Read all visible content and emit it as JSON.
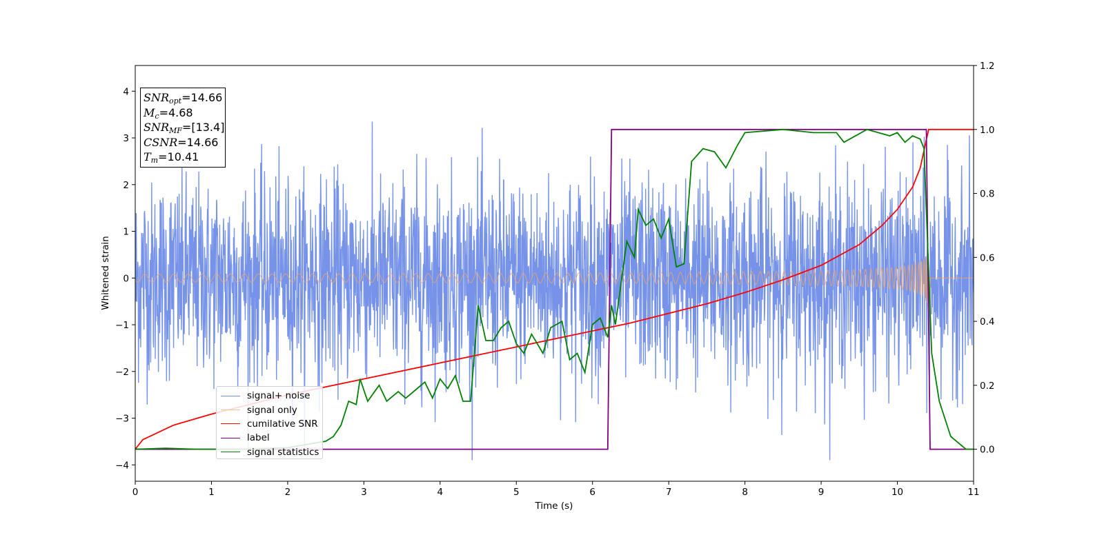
{
  "chart_data": {
    "type": "line",
    "xlabel": "Time (s)",
    "ylabel": "Whitened strain",
    "xlim": [
      0,
      11
    ],
    "ylim_left": [
      -4.35,
      4.55
    ],
    "ylim_right": [
      -0.1,
      1.2
    ],
    "x_ticks": [
      "0",
      "1",
      "2",
      "3",
      "4",
      "5",
      "6",
      "7",
      "8",
      "9",
      "10",
      "11"
    ],
    "y_ticks_left": [
      "−4",
      "−3",
      "−2",
      "−1",
      "0",
      "1",
      "2",
      "3",
      "4"
    ],
    "y_ticks_right": [
      "0.0",
      "0.2",
      "0.4",
      "0.6",
      "0.8",
      "1.0",
      "1.2"
    ],
    "grid": false,
    "legend_position": "lower-left",
    "annotation": {
      "snr_opt_label": "SNR",
      "snr_opt_sub": "opt",
      "snr_opt_value": "=14.66",
      "mc_label": "M",
      "mc_sub": "c",
      "mc_value": "=4.68",
      "snr_mf_label": "SNR",
      "snr_mf_sub": "MF",
      "snr_mf_value": "=[13.4]",
      "csnr_label": "CSNR",
      "csnr_value": "=14.66",
      "tm_label": "T",
      "tm_sub": "m",
      "tm_value": "=10.41"
    },
    "series": [
      {
        "name": "signal+ noise",
        "color": "#4169e1",
        "axis": "left",
        "kind": "noise_band",
        "approx_range": [
          -3.9,
          4.2
        ],
        "t_end": 11
      },
      {
        "name": "signal only",
        "color": "#f4a460",
        "axis": "left",
        "kind": "chirp",
        "t_merge": 10.41,
        "peak_amplitude": 1.0
      },
      {
        "name": "cumilative SNR",
        "color": "#ff0000",
        "axis": "right",
        "x": [
          0,
          0.1,
          0.5,
          1,
          2,
          3,
          4,
          5,
          6,
          6.5,
          7,
          7.5,
          8,
          8.5,
          9,
          9.5,
          9.8,
          10,
          10.2,
          10.3,
          10.41,
          10.45,
          11
        ],
        "y": [
          0.0,
          0.03,
          0.075,
          0.11,
          0.17,
          0.22,
          0.27,
          0.32,
          0.37,
          0.395,
          0.425,
          0.455,
          0.49,
          0.53,
          0.575,
          0.64,
          0.7,
          0.75,
          0.82,
          0.88,
          1.0,
          1.0,
          1.0
        ]
      },
      {
        "name": "label",
        "color": "#800080",
        "axis": "right",
        "x": [
          0,
          6.2,
          6.25,
          10.38,
          10.43,
          11
        ],
        "y": [
          0,
          0,
          1,
          1,
          0,
          0
        ]
      },
      {
        "name": "signal statistics",
        "color": "#008000",
        "axis": "right",
        "x": [
          0,
          0.4,
          0.8,
          1.5,
          2.0,
          2.5,
          2.6,
          2.7,
          2.8,
          2.9,
          2.95,
          3.05,
          3.2,
          3.3,
          3.45,
          3.55,
          3.7,
          3.8,
          3.9,
          4.0,
          4.1,
          4.2,
          4.3,
          4.4,
          4.5,
          4.6,
          4.7,
          4.8,
          4.9,
          5.0,
          5.1,
          5.2,
          5.35,
          5.45,
          5.6,
          5.7,
          5.8,
          5.9,
          6.0,
          6.1,
          6.2,
          6.25,
          6.3,
          6.45,
          6.55,
          6.6,
          6.7,
          6.8,
          6.9,
          7.0,
          7.1,
          7.2,
          7.3,
          7.45,
          7.6,
          7.75,
          7.9,
          8.0,
          8.5,
          8.9,
          9.0,
          9.2,
          9.3,
          9.6,
          9.9,
          10.0,
          10.1,
          10.2,
          10.3,
          10.35,
          10.45,
          10.55,
          10.7,
          10.9,
          11.0
        ],
        "y": [
          0.0,
          0.003,
          0.0,
          0.0,
          0.005,
          0.025,
          0.04,
          0.075,
          0.15,
          0.14,
          0.22,
          0.15,
          0.2,
          0.15,
          0.18,
          0.16,
          0.19,
          0.21,
          0.16,
          0.22,
          0.19,
          0.23,
          0.15,
          0.15,
          0.45,
          0.34,
          0.34,
          0.38,
          0.4,
          0.33,
          0.3,
          0.36,
          0.3,
          0.38,
          0.4,
          0.28,
          0.3,
          0.24,
          0.39,
          0.41,
          0.35,
          0.45,
          0.39,
          0.65,
          0.6,
          0.75,
          0.7,
          0.72,
          0.66,
          0.72,
          0.57,
          0.58,
          0.9,
          0.94,
          0.93,
          0.88,
          0.95,
          0.99,
          1.0,
          0.99,
          0.99,
          0.99,
          0.96,
          1.0,
          0.98,
          0.99,
          0.96,
          0.98,
          0.97,
          0.94,
          0.3,
          0.15,
          0.04,
          0.0,
          0.0
        ]
      }
    ]
  }
}
